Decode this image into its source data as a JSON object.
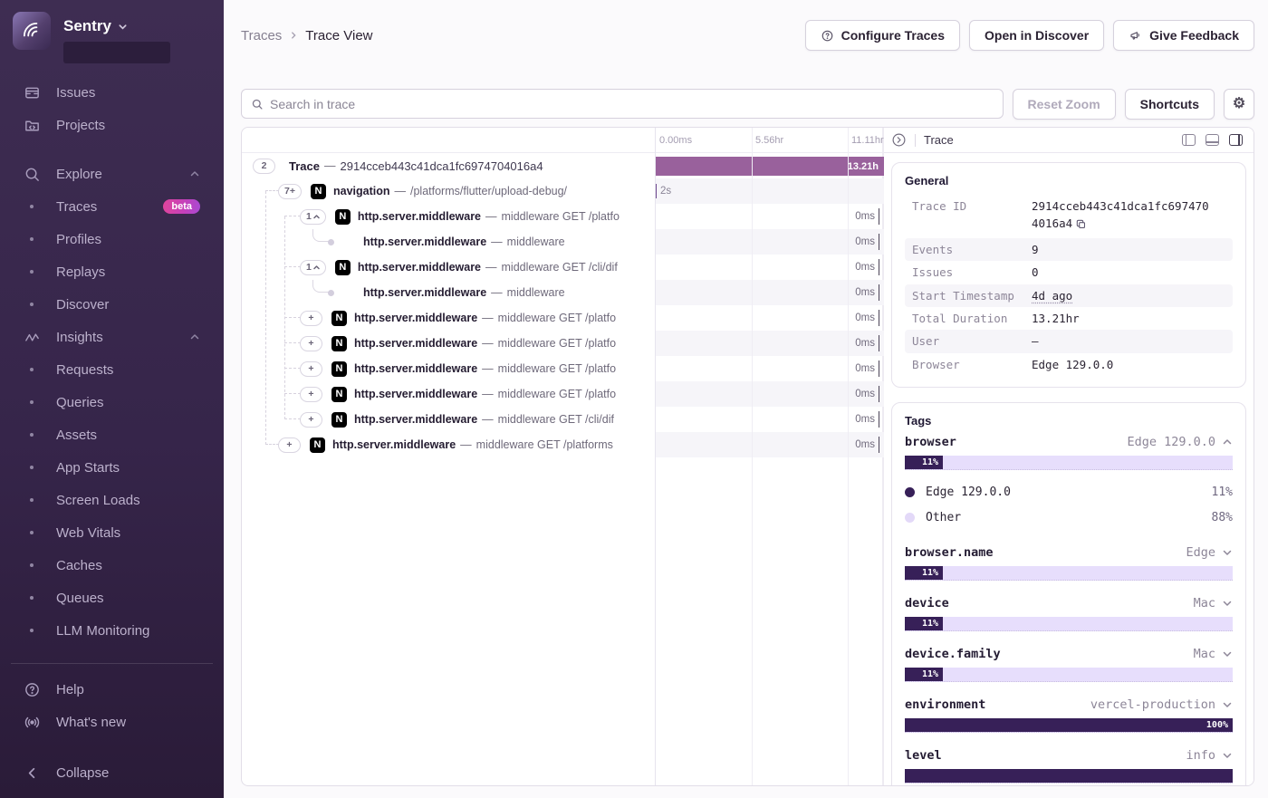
{
  "sidebar": {
    "brand": "Sentry",
    "sections": [
      {
        "items": [
          {
            "label": "Issues",
            "icon": "issues"
          },
          {
            "label": "Projects",
            "icon": "projects"
          }
        ]
      },
      {
        "header": {
          "label": "Explore",
          "icon": "search"
        },
        "items": [
          {
            "label": "Traces",
            "bullet": true,
            "badge": "beta"
          },
          {
            "label": "Profiles",
            "bullet": true
          },
          {
            "label": "Replays",
            "bullet": true
          },
          {
            "label": "Discover",
            "bullet": true
          }
        ]
      },
      {
        "header": {
          "label": "Insights",
          "icon": "insights"
        },
        "items": [
          {
            "label": "Requests",
            "bullet": true
          },
          {
            "label": "Queries",
            "bullet": true
          },
          {
            "label": "Assets",
            "bullet": true
          },
          {
            "label": "App Starts",
            "bullet": true
          },
          {
            "label": "Screen Loads",
            "bullet": true
          },
          {
            "label": "Web Vitals",
            "bullet": true
          },
          {
            "label": "Caches",
            "bullet": true
          },
          {
            "label": "Queues",
            "bullet": true
          },
          {
            "label": "LLM Monitoring",
            "bullet": true
          }
        ]
      }
    ],
    "footer": [
      {
        "label": "Help",
        "icon": "help"
      },
      {
        "label": "What's new",
        "icon": "whats-new"
      }
    ],
    "collapse_label": "Collapse"
  },
  "header": {
    "breadcrumb": [
      "Traces",
      "Trace View"
    ],
    "buttons": [
      {
        "label": "Configure Traces",
        "icon": "help-circle"
      },
      {
        "label": "Open in Discover"
      },
      {
        "label": "Give Feedback",
        "icon": "megaphone"
      }
    ]
  },
  "toolbar": {
    "search_placeholder": "Search in trace",
    "reset_zoom": "Reset Zoom",
    "shortcuts": "Shortcuts"
  },
  "waterfall": {
    "time_labels": [
      "0.00ms",
      "5.56hr",
      "11.11hr"
    ],
    "rows": [
      {
        "badge": "2",
        "depth": 0,
        "title": "Trace",
        "desc": "2914cceb443c41dca1fc6974704016a4",
        "bar": {
          "type": "full",
          "label": "13.21h"
        }
      },
      {
        "badge": "7+",
        "depth": 1,
        "nextjs": true,
        "title": "navigation",
        "desc": "/platforms/flutter/upload-debug/",
        "bar": {
          "type": "tick",
          "label": "2s"
        },
        "striped": true
      },
      {
        "badge": "1",
        "chevron": true,
        "depth": 2,
        "nextjs": true,
        "title": "http.server.middleware",
        "desc": "middleware GET /platfo",
        "duration": "0ms"
      },
      {
        "depth": 3,
        "dot": true,
        "title": "http.server.middleware",
        "desc": "middleware",
        "duration": "0ms",
        "striped": true
      },
      {
        "badge": "1",
        "chevron": true,
        "depth": 2,
        "nextjs": true,
        "title": "http.server.middleware",
        "desc": "middleware GET /cli/dif",
        "duration": "0ms"
      },
      {
        "depth": 3,
        "dot": true,
        "title": "http.server.middleware",
        "desc": "middleware",
        "duration": "0ms",
        "striped": true
      },
      {
        "badge": "+",
        "depth": 2,
        "nextjs": true,
        "title": "http.server.middleware",
        "desc": "middleware GET /platfo",
        "duration": "0ms"
      },
      {
        "badge": "+",
        "depth": 2,
        "nextjs": true,
        "title": "http.server.middleware",
        "desc": "middleware GET /platfo",
        "duration": "0ms",
        "striped": true
      },
      {
        "badge": "+",
        "depth": 2,
        "nextjs": true,
        "title": "http.server.middleware",
        "desc": "middleware GET /platfo",
        "duration": "0ms"
      },
      {
        "badge": "+",
        "depth": 2,
        "nextjs": true,
        "title": "http.server.middleware",
        "desc": "middleware GET /platfo",
        "duration": "0ms",
        "striped": true
      },
      {
        "badge": "+",
        "depth": 2,
        "nextjs": true,
        "title": "http.server.middleware",
        "desc": "middleware GET /cli/dif",
        "duration": "0ms"
      },
      {
        "badge": "+",
        "depth": 1,
        "nextjs": true,
        "title": "http.server.middleware",
        "desc": "middleware GET /platforms",
        "duration": "0ms",
        "striped": true
      }
    ]
  },
  "drawer": {
    "title": "Trace",
    "general": {
      "title": "General",
      "rows": [
        {
          "key": "Trace ID",
          "value": "2914cceb443c41dca1fc6974704016a4",
          "copy": true
        },
        {
          "key": "Events",
          "value": "9"
        },
        {
          "key": "Issues",
          "value": "0"
        },
        {
          "key": "Start Timestamp",
          "value": "4d ago",
          "underline": true
        },
        {
          "key": "Total Duration",
          "value": "13.21hr"
        },
        {
          "key": "User",
          "value": "—"
        },
        {
          "key": "Browser",
          "value": "Edge 129.0.0"
        }
      ]
    },
    "tags": {
      "title": "Tags",
      "items": [
        {
          "name": "browser",
          "value": "Edge 129.0.0",
          "chevron": "up",
          "percent": 11,
          "bar_label": "11%",
          "legend": [
            {
              "color": "dark",
              "label": "Edge 129.0.0",
              "pct": "11%"
            },
            {
              "color": "light",
              "label": "Other",
              "pct": "88%"
            }
          ]
        },
        {
          "name": "browser.name",
          "value": "Edge",
          "chevron": "down",
          "percent": 11,
          "bar_label": "11%"
        },
        {
          "name": "device",
          "value": "Mac",
          "chevron": "down",
          "percent": 11,
          "bar_label": "11%"
        },
        {
          "name": "device.family",
          "value": "Mac",
          "chevron": "down",
          "percent": 11,
          "bar_label": "11%"
        },
        {
          "name": "environment",
          "value": "vercel-production",
          "chevron": "down",
          "percent": 100,
          "bar_label": "100%"
        },
        {
          "name": "level",
          "value": "info",
          "chevron": "down",
          "percent": 100,
          "bar_label": ""
        }
      ]
    }
  },
  "colors": {
    "sidebar_bg": "#36254A",
    "trace_bar": "#99619C",
    "tag_fill_dark": "#372058",
    "tag_track_light": "#E7DEFC",
    "beta_badge": "#D63CA8",
    "accent": "#6C5FC7"
  }
}
